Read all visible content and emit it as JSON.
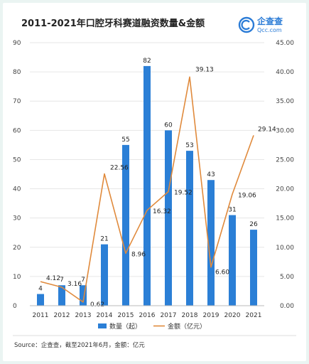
{
  "header": {
    "title": "2011-2021年口腔牙科赛道融资数量&金额",
    "logo_name": "企查查",
    "logo_url_text": "Qcc.com"
  },
  "source_text": "Source：企查查，截至2021年6月，金额：亿元",
  "colors": {
    "bar": "#2b7fd6",
    "line": "#e08a3c",
    "grid": "#e6e6e6"
  },
  "chart_data": {
    "type": "bar",
    "categories": [
      "2011",
      "2012",
      "2013",
      "2014",
      "2015",
      "2016",
      "2017",
      "2018",
      "2019",
      "2020",
      "2021"
    ],
    "series": [
      {
        "name": "数量（起）",
        "type": "bar",
        "axis": "left",
        "values": [
          4,
          7,
          7,
          21,
          55,
          82,
          60,
          53,
          43,
          31,
          26
        ]
      },
      {
        "name": "金额（亿元）",
        "type": "line",
        "axis": "right",
        "values": [
          4.12,
          3.16,
          0.62,
          22.56,
          8.96,
          16.32,
          19.52,
          39.13,
          6.6,
          19.06,
          29.14
        ],
        "labels": [
          "4.12",
          "3.16",
          "0.62",
          "22.56",
          "8.96",
          "16.32",
          "19.52",
          "39.13",
          "6.60",
          "19.06",
          "29.14"
        ]
      }
    ],
    "ylim_left": [
      0,
      90
    ],
    "yticks_left": [
      "0",
      "10",
      "20",
      "30",
      "40",
      "50",
      "60",
      "70",
      "80",
      "90"
    ],
    "ylim_right": [
      0,
      45
    ],
    "yticks_right": [
      "0.00",
      "5.00",
      "10.00",
      "15.00",
      "20.00",
      "25.00",
      "30.00",
      "35.00",
      "40.00",
      "45.00"
    ],
    "grid": true,
    "legend_position": "bottom"
  }
}
